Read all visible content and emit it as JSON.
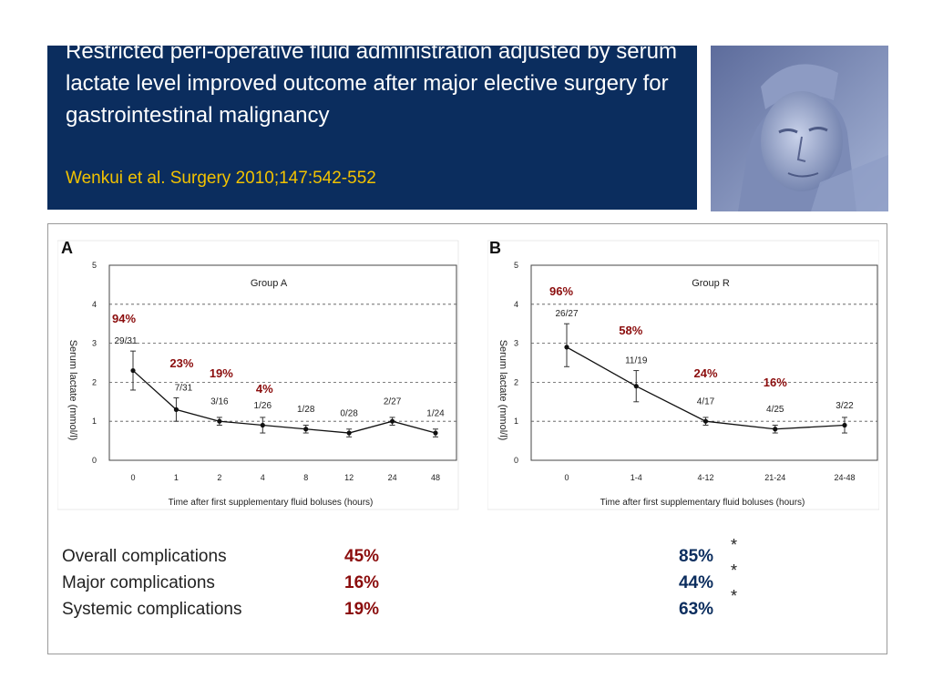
{
  "header": {
    "title": "Restricted peri-operative fluid administration adjusted by serum lactate level improved outcome after major elective surgery for gastrointestinal malignancy",
    "citation": "Wenkui et al. Surgery 2010;147:542-552",
    "photo": "statue-head-photo"
  },
  "colors": {
    "header_bg": "#0b2d5e",
    "citation": "#f2c200",
    "red": "#8b0d0d",
    "blue": "#0b2d5e"
  },
  "chart_data": [
    {
      "type": "line",
      "panel": "A",
      "title": "Group A",
      "ylabel": "Serum lactate (mmol/l)",
      "xlabel": "Time after first supplementary fluid boluses (hours)",
      "ylim": [
        0,
        5
      ],
      "yticks": [
        "0",
        "1",
        "2",
        "3",
        "4",
        "5"
      ],
      "categories": [
        "0",
        "1",
        "2",
        "4",
        "8",
        "12",
        "24",
        "48"
      ],
      "values": [
        2.3,
        1.3,
        1.0,
        0.9,
        0.8,
        0.7,
        1.0,
        0.7
      ],
      "err_low": [
        1.8,
        1.0,
        0.9,
        0.7,
        0.7,
        0.6,
        0.9,
        0.6
      ],
      "err_high": [
        2.8,
        1.6,
        1.1,
        1.1,
        0.9,
        0.8,
        1.1,
        0.8
      ],
      "fractions": [
        "29/31",
        "7/31",
        "3/16",
        "1/26",
        "1/28",
        "0/28",
        "2/27",
        "1/24"
      ],
      "percent_labels": [
        "94%",
        "23%",
        "19%",
        "4%"
      ],
      "grid": true
    },
    {
      "type": "line",
      "panel": "B",
      "title": "Group R",
      "ylabel": "Serum lactate (mmol/l)",
      "xlabel": "Time after first supplementary fluid boluses (hours)",
      "ylim": [
        0,
        5
      ],
      "yticks": [
        "0",
        "1",
        "2",
        "3",
        "4",
        "5"
      ],
      "categories": [
        "0",
        "1-4",
        "4-12",
        "21-24",
        "24-48"
      ],
      "values": [
        2.9,
        1.9,
        1.0,
        0.8,
        0.9
      ],
      "err_low": [
        2.4,
        1.5,
        0.9,
        0.7,
        0.7
      ],
      "err_high": [
        3.5,
        2.3,
        1.1,
        0.9,
        1.1
      ],
      "fractions": [
        "26/27",
        "11/19",
        "4/17",
        "4/25",
        "3/22"
      ],
      "percent_labels": [
        "96%",
        "58%",
        "24%",
        "16%"
      ],
      "grid": true
    }
  ],
  "stats": [
    {
      "label": "Overall complications",
      "group_a": "45%",
      "group_r": "85%",
      "marker": "*"
    },
    {
      "label": "Major complications",
      "group_a": "16%",
      "group_r": "44%",
      "marker": "*"
    },
    {
      "label": "Systemic complications",
      "group_a": "19%",
      "group_r": "63%",
      "marker": "*"
    }
  ]
}
